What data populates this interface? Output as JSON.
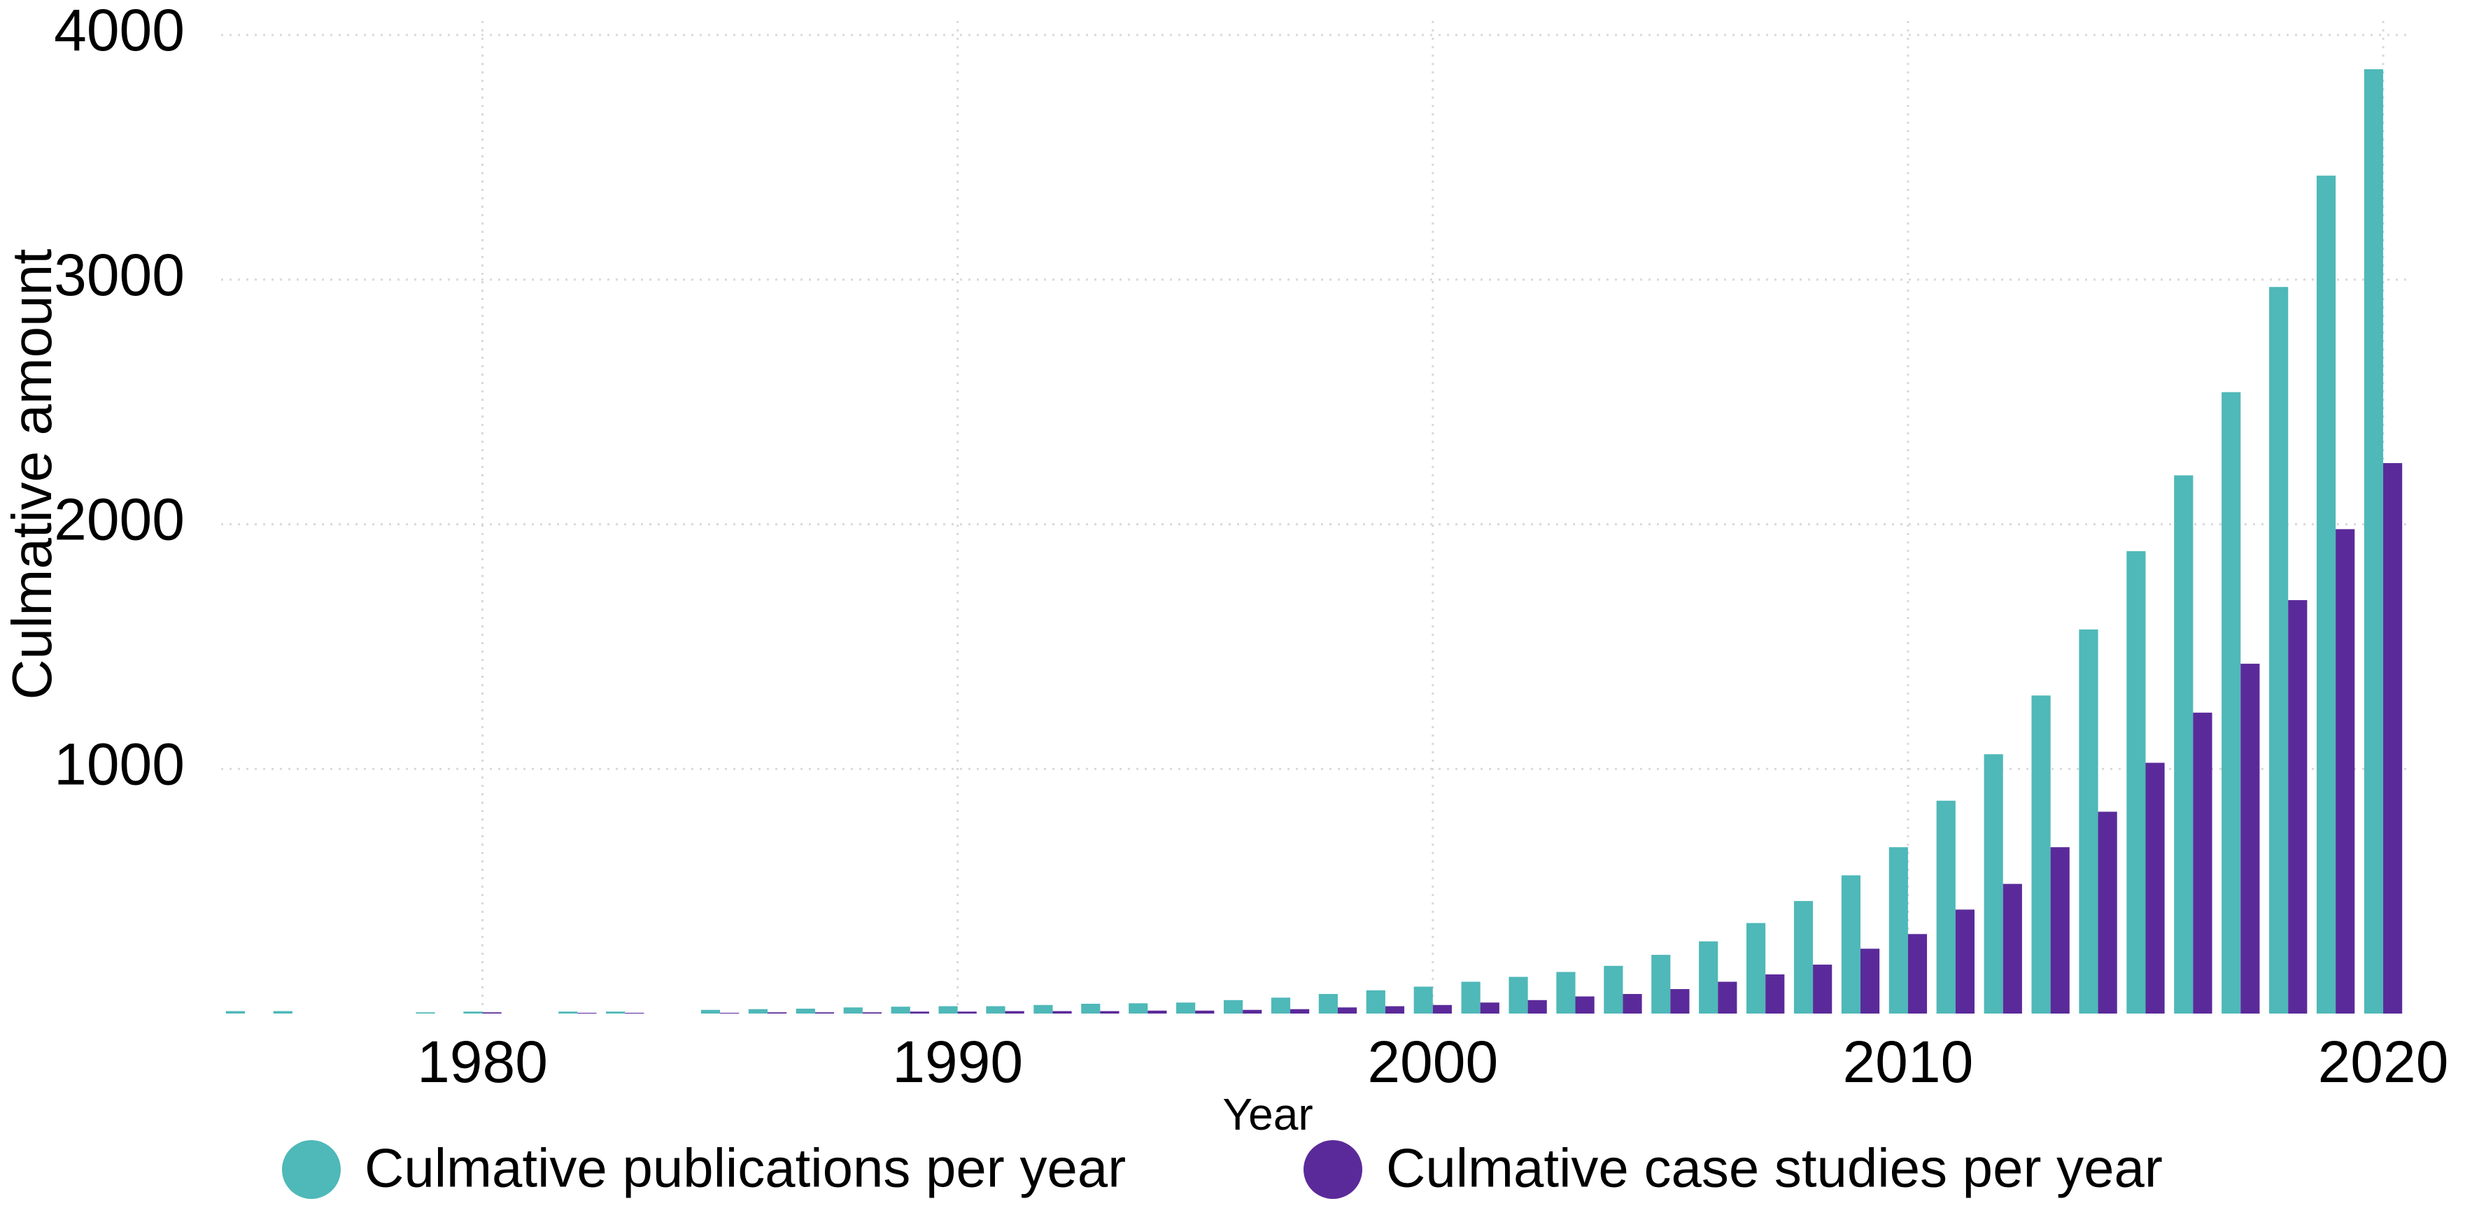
{
  "chart_data": {
    "type": "bar",
    "x_label": "Year",
    "y_label": "Culmative amount",
    "x": [
      1975,
      1976,
      1977,
      1978,
      1979,
      1980,
      1981,
      1982,
      1983,
      1984,
      1985,
      1986,
      1987,
      1988,
      1989,
      1990,
      1991,
      1992,
      1993,
      1994,
      1995,
      1996,
      1997,
      1998,
      1999,
      2000,
      2001,
      2002,
      2003,
      2004,
      2005,
      2006,
      2007,
      2008,
      2009,
      2010,
      2011,
      2012,
      2013,
      2014,
      2015,
      2016,
      2017,
      2018,
      2019,
      2020
    ],
    "series": [
      {
        "name": "Culmative publications per year",
        "color": "#4fb8b8",
        "values": [
          10,
          10,
          0,
          0,
          5,
          8,
          0,
          8,
          8,
          0,
          15,
          18,
          20,
          25,
          28,
          30,
          30,
          35,
          40,
          42,
          45,
          55,
          65,
          80,
          95,
          110,
          130,
          150,
          170,
          195,
          240,
          295,
          370,
          460,
          565,
          680,
          870,
          1060,
          1300,
          1570,
          1890,
          2200,
          2540,
          2970,
          3425,
          3860
        ]
      },
      {
        "name": "Culmative case studies per year",
        "color": "#5b2a9a",
        "values": [
          0,
          0,
          0,
          0,
          0,
          5,
          0,
          3,
          3,
          0,
          3,
          5,
          5,
          5,
          8,
          8,
          10,
          10,
          10,
          12,
          12,
          15,
          18,
          25,
          30,
          35,
          45,
          55,
          70,
          80,
          100,
          130,
          160,
          200,
          265,
          325,
          425,
          530,
          680,
          825,
          1025,
          1230,
          1430,
          1690,
          1980,
          2250
        ]
      }
    ],
    "xlim": [
      1974.5,
      2020.5
    ],
    "xticks": [
      1980,
      1990,
      2000,
      2010,
      2020
    ],
    "ylim": [
      0,
      4000
    ],
    "yticks": [
      1000,
      2000,
      3000,
      4000
    ],
    "grid": true,
    "legend": "bottom"
  }
}
